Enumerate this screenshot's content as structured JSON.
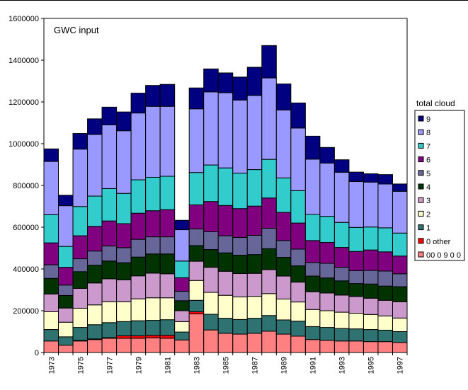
{
  "chart_data": {
    "type": "bar",
    "stacked": true,
    "title": "GWC input",
    "xlabel": "",
    "ylabel": "",
    "ylim": [
      0,
      1600000
    ],
    "yticks": [
      "0",
      "200000",
      "400000",
      "600000",
      "800000",
      "1000000",
      "1200000",
      "1400000",
      "1600000"
    ],
    "ytick_values": [
      0,
      200000,
      400000,
      600000,
      800000,
      1000000,
      1200000,
      1400000,
      1600000
    ],
    "categories": [
      "1973",
      "1974",
      "1975",
      "1976",
      "1977",
      "1978",
      "1979",
      "1980",
      "1981",
      "1982",
      "1983",
      "1984",
      "1985",
      "1986",
      "1987",
      "1988",
      "1989",
      "1990",
      "1991",
      "1992",
      "1993",
      "1994",
      "1995",
      "1996",
      "1997"
    ],
    "xtick_labels": [
      "1973",
      "",
      "1975",
      "",
      "1977",
      "",
      "1979",
      "",
      "1981",
      "",
      "1983",
      "",
      "1985",
      "",
      "1987",
      "",
      "1989",
      "",
      "1991",
      "",
      "1993",
      "",
      "1995",
      "",
      "1997"
    ],
    "grid": false,
    "legend_title": "total cloud",
    "legend_position": "right",
    "series": [
      {
        "name": "00 0 9 0 0",
        "color": "#ff8080",
        "values": [
          55000,
          35000,
          55000,
          62000,
          68000,
          68000,
          68000,
          70000,
          68000,
          60000,
          185000,
          108000,
          92000,
          88000,
          92000,
          102000,
          88000,
          78000,
          62000,
          58000,
          55000,
          55000,
          52000,
          52000,
          48000
        ]
      },
      {
        "name": "0 other",
        "color": "#ff0000",
        "values": [
          0,
          0,
          3000,
          3000,
          3000,
          12000,
          12000,
          12000,
          14000,
          0,
          10000,
          0,
          0,
          0,
          0,
          0,
          0,
          0,
          0,
          0,
          0,
          0,
          0,
          0,
          0
        ]
      },
      {
        "name": "1",
        "color": "#2e7272",
        "values": [
          55000,
          40000,
          62000,
          68000,
          72000,
          68000,
          72000,
          72000,
          75000,
          38000,
          55000,
          75000,
          72000,
          70000,
          72000,
          75000,
          68000,
          72000,
          62000,
          62000,
          60000,
          58000,
          58000,
          55000,
          52000
        ]
      },
      {
        "name": "2",
        "color": "#ffffcc",
        "values": [
          85000,
          70000,
          92000,
          95000,
          100000,
          95000,
          105000,
          108000,
          105000,
          50000,
          95000,
          105000,
          110000,
          108000,
          105000,
          105000,
          100000,
          92000,
          82000,
          80000,
          78000,
          75000,
          72000,
          68000,
          65000
        ]
      },
      {
        "name": "3",
        "color": "#cc99cc",
        "values": [
          85000,
          68000,
          95000,
          105000,
          110000,
          105000,
          110000,
          118000,
          115000,
          52000,
          92000,
          120000,
          115000,
          112000,
          110000,
          115000,
          110000,
          95000,
          85000,
          85000,
          82000,
          80000,
          78000,
          75000,
          78000
        ]
      },
      {
        "name": "4",
        "color": "#003300",
        "values": [
          75000,
          60000,
          80000,
          85000,
          85000,
          82000,
          90000,
          92000,
          95000,
          48000,
          75000,
          85000,
          88000,
          88000,
          90000,
          100000,
          90000,
          78000,
          75000,
          72000,
          68000,
          62000,
          68000,
          68000,
          72000
        ]
      },
      {
        "name": "5",
        "color": "#666699",
        "values": [
          65000,
          50000,
          62000,
          68000,
          72000,
          72000,
          85000,
          82000,
          82000,
          45000,
          80000,
          85000,
          82000,
          85000,
          92000,
          98000,
          80000,
          80000,
          65000,
          70000,
          65000,
          62000,
          65000,
          72000,
          62000
        ]
      },
      {
        "name": "6",
        "color": "#800080",
        "values": [
          105000,
          85000,
          110000,
          118000,
          120000,
          115000,
          125000,
          125000,
          130000,
          65000,
          115000,
          145000,
          145000,
          138000,
          140000,
          145000,
          135000,
          125000,
          105000,
          100000,
          95000,
          92000,
          98000,
          92000,
          85000
        ]
      },
      {
        "name": "7",
        "color": "#33cccc",
        "values": [
          135000,
          100000,
          140000,
          145000,
          155000,
          145000,
          160000,
          160000,
          160000,
          80000,
          155000,
          175000,
          180000,
          170000,
          175000,
          185000,
          165000,
          155000,
          125000,
          125000,
          120000,
          115000,
          110000,
          115000,
          110000
        ]
      },
      {
        "name": "8",
        "color": "#9999ff",
        "values": [
          255000,
          195000,
          275000,
          295000,
          305000,
          300000,
          320000,
          340000,
          335000,
          150000,
          305000,
          350000,
          360000,
          350000,
          355000,
          390000,
          325000,
          300000,
          265000,
          255000,
          240000,
          220000,
          215000,
          210000,
          200000
        ]
      },
      {
        "name": "9",
        "color": "#000080",
        "values": [
          60000,
          50000,
          75000,
          75000,
          85000,
          90000,
          95000,
          100000,
          105000,
          45000,
          100000,
          110000,
          95000,
          110000,
          135000,
          155000,
          125000,
          120000,
          110000,
          75000,
          60000,
          45000,
          40000,
          45000,
          35000
        ]
      }
    ]
  }
}
